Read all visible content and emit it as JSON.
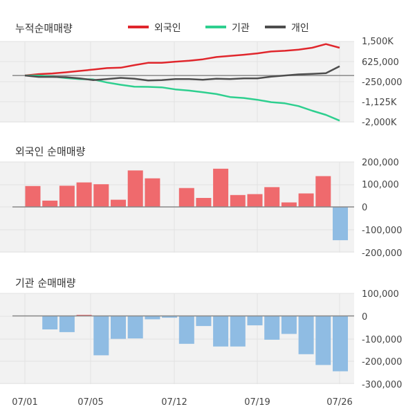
{
  "colors": {
    "foreigner": "#e0262c",
    "institution": "#2ecf8f",
    "individual": "#4d4d4d",
    "bar_pos": "#ef6a6d",
    "bar_neg": "#8fbce3",
    "panel_bg": "#f2f2f2",
    "zero_line": "#888888"
  },
  "chart_data": [
    {
      "type": "line",
      "title": "누적순매매량",
      "legend": [
        "외국인",
        "기관",
        "개인"
      ],
      "legend_placement": "top",
      "yticks": [
        "1,500K",
        "625,000",
        "-250,000",
        "-1,125K",
        "-2,000K"
      ],
      "ylim": [
        -2000000,
        1500000
      ],
      "series": [
        {
          "name": "외국인",
          "values": [
            0,
            60000,
            90000,
            140000,
            200000,
            260000,
            320000,
            340000,
            450000,
            550000,
            550000,
            600000,
            640000,
            700000,
            800000,
            850000,
            900000,
            960000,
            1040000,
            1070000,
            1120000,
            1200000,
            1360000,
            1200000
          ]
        },
        {
          "name": "기관",
          "values": [
            0,
            0,
            -40000,
            -110000,
            -150000,
            -170000,
            -300000,
            -400000,
            -480000,
            -490000,
            -510000,
            -600000,
            -650000,
            -720000,
            -800000,
            -930000,
            -970000,
            -1050000,
            -1150000,
            -1200000,
            -1320000,
            -1520000,
            -1700000,
            -1950000
          ]
        },
        {
          "name": "개인",
          "values": [
            0,
            -60000,
            -60000,
            -70000,
            -120000,
            -200000,
            -150000,
            -100000,
            -140000,
            -210000,
            -200000,
            -150000,
            -150000,
            -180000,
            -140000,
            -150000,
            -120000,
            -120000,
            -50000,
            0,
            50000,
            70000,
            100000,
            400000
          ]
        }
      ]
    },
    {
      "type": "bar",
      "title": "외국인 순매매량",
      "yticks": [
        "200,000",
        "100,000",
        "0",
        "-100,000",
        "-200,000"
      ],
      "ylim": [
        -200000,
        200000
      ],
      "values": [
        93000,
        28000,
        94000,
        109000,
        101000,
        32000,
        162000,
        127000,
        null,
        84000,
        40000,
        170000,
        53000,
        57000,
        88000,
        20000,
        60000,
        137000,
        -148000
      ]
    },
    {
      "type": "bar",
      "title": "기관 순매매량",
      "yticks": [
        "100,000",
        "0",
        "-100,000",
        "-200,000",
        "-300,000"
      ],
      "ylim": [
        -300000,
        100000
      ],
      "values": [
        null,
        -60000,
        -72000,
        5000,
        -175000,
        -102000,
        -100000,
        -15000,
        -8000,
        -124000,
        -45000,
        -136000,
        -136000,
        -42000,
        -106000,
        -80000,
        -170000,
        -218000,
        -246000
      ]
    }
  ],
  "xticks": [
    "07/01",
    "07/05",
    "07/12",
    "07/19",
    "07/26"
  ]
}
